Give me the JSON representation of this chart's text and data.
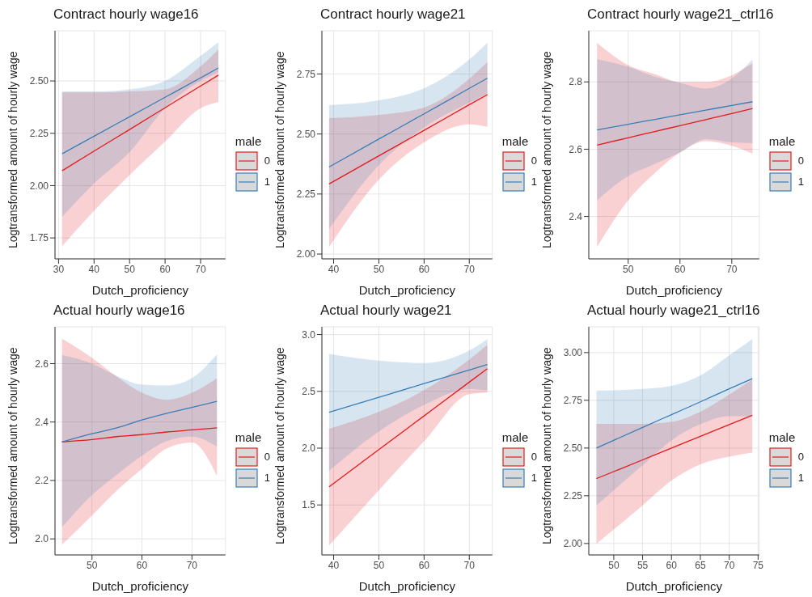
{
  "chart_data": [
    {
      "type": "line",
      "title": "Contract hourly wage16",
      "xlabel": "Dutch_proficiency",
      "ylabel": "Logtransformed amount of hourly wage",
      "legend_title": "male",
      "legend": "right",
      "grid": true,
      "x": [
        31,
        40,
        50,
        60,
        70,
        75
      ],
      "xlim": [
        29,
        77
      ],
      "xticks": [
        30,
        40,
        50,
        60,
        70
      ],
      "ylim": [
        1.65,
        2.74
      ],
      "yticks": [
        1.75,
        {
          "value": 2,
          "label": "2.00"
        },
        2.25,
        {
          "value": 2.5,
          "label": "2.50"
        }
      ],
      "series": [
        {
          "name": "0",
          "color": "#e41a1c",
          "values": [
            2.071,
            2.165,
            2.268,
            2.372,
            2.476,
            2.528
          ],
          "lower": [
            1.71,
            1.88,
            2.05,
            2.21,
            2.37,
            2.4
          ],
          "upper": [
            2.445,
            2.445,
            2.45,
            2.46,
            2.57,
            2.65
          ]
        },
        {
          "name": "1",
          "color": "#377eb8",
          "values": [
            2.152,
            2.236,
            2.329,
            2.422,
            2.515,
            2.562
          ],
          "lower": [
            1.85,
            2.01,
            2.16,
            2.37,
            2.5,
            2.54
          ],
          "upper": [
            2.45,
            2.45,
            2.46,
            2.5,
            2.62,
            2.685
          ]
        }
      ]
    },
    {
      "type": "line",
      "title": "Contract hourly wage21",
      "xlabel": "Dutch_proficiency",
      "ylabel": "Logtransformed amount of hourly wage",
      "legend_title": "male",
      "legend": "right",
      "grid": true,
      "x": [
        39,
        50,
        60,
        70,
        74
      ],
      "xlim": [
        37.4,
        75.1
      ],
      "xticks": [
        40,
        50,
        60,
        70
      ],
      "ylim": [
        1.98,
        2.93
      ],
      "yticks": [
        {
          "value": 2,
          "label": "2.00"
        },
        2.25,
        {
          "value": 2.5,
          "label": "2.50"
        },
        2.75
      ],
      "series": [
        {
          "name": "0",
          "color": "#e41a1c",
          "values": [
            2.292,
            2.409,
            2.515,
            2.622,
            2.664
          ],
          "lower": [
            2.03,
            2.31,
            2.465,
            2.54,
            2.53
          ],
          "upper": [
            2.566,
            2.58,
            2.61,
            2.73,
            2.8
          ]
        },
        {
          "name": "1",
          "color": "#377eb8",
          "values": [
            2.363,
            2.479,
            2.584,
            2.69,
            2.732
          ],
          "lower": [
            2.105,
            2.37,
            2.527,
            2.63,
            2.667
          ],
          "upper": [
            2.62,
            2.64,
            2.69,
            2.81,
            2.88
          ]
        }
      ]
    },
    {
      "type": "line",
      "title": "Contract hourly wage21_ctrl16",
      "xlabel": "Dutch_proficiency",
      "ylabel": "Logtransformed amount of hourly wage",
      "legend_title": "male",
      "legend": "right",
      "grid": true,
      "x": [
        44,
        50,
        55,
        60,
        65,
        70,
        74
      ],
      "xlim": [
        42.4,
        75.3
      ],
      "xticks": [
        50,
        60,
        70
      ],
      "ylim": [
        2.274,
        2.952
      ],
      "yticks": [
        2.4,
        2.6,
        2.8
      ],
      "series": [
        {
          "name": "0",
          "color": "#e41a1c",
          "values": [
            2.612,
            2.634,
            2.652,
            2.67,
            2.688,
            2.706,
            2.721
          ],
          "lower": [
            2.309,
            2.448,
            2.527,
            2.59,
            2.624,
            2.61,
            2.587
          ],
          "upper": [
            2.916,
            2.85,
            2.824,
            2.8,
            2.8,
            2.82,
            2.855
          ]
        },
        {
          "name": "1",
          "color": "#377eb8",
          "values": [
            2.657,
            2.674,
            2.688,
            2.702,
            2.716,
            2.73,
            2.741
          ],
          "lower": [
            2.448,
            2.52,
            2.555,
            2.59,
            2.63,
            2.62,
            2.618
          ],
          "upper": [
            2.867,
            2.845,
            2.816,
            2.797,
            2.78,
            2.81,
            2.867
          ]
        }
      ]
    },
    {
      "type": "line",
      "title": "Actual hourly wage16",
      "xlabel": "Dutch_proficiency",
      "ylabel": "Logtransformed amount of hourly wage",
      "legend_title": "male",
      "legend": "right",
      "grid": true,
      "x": [
        44,
        50,
        55,
        60,
        65,
        70,
        75
      ],
      "xlim": [
        42.6,
        76.7
      ],
      "xticks": [
        50,
        60,
        70
      ],
      "ylim": [
        1.945,
        2.726
      ],
      "yticks": [
        {
          "value": 2,
          "label": "2.0"
        },
        2.2,
        2.4,
        2.6
      ],
      "series": [
        {
          "name": "0",
          "color": "#e41a1c",
          "values": [
            2.332,
            2.34,
            2.35,
            2.357,
            2.366,
            2.373,
            2.38
          ],
          "lower": [
            1.98,
            2.08,
            2.166,
            2.24,
            2.31,
            2.33,
            2.216
          ],
          "upper": [
            2.685,
            2.62,
            2.555,
            2.5,
            2.476,
            2.5,
            2.55
          ]
        },
        {
          "name": "1",
          "color": "#377eb8",
          "values": [
            2.332,
            2.36,
            2.38,
            2.407,
            2.43,
            2.45,
            2.471
          ],
          "lower": [
            2.04,
            2.15,
            2.22,
            2.285,
            2.335,
            2.35,
            2.316
          ],
          "upper": [
            2.63,
            2.6,
            2.557,
            2.528,
            2.525,
            2.55,
            2.632
          ]
        }
      ]
    },
    {
      "type": "line",
      "title": "Actual hourly wage21",
      "xlabel": "Dutch_proficiency",
      "ylabel": "Logtransformed amount of hourly wage",
      "legend_title": "male",
      "legend": "right",
      "grid": true,
      "x": [
        39,
        50,
        60,
        70,
        74
      ],
      "xlim": [
        37.4,
        75.1
      ],
      "xticks": [
        40,
        50,
        60,
        70
      ],
      "ylim": [
        1.06,
        3.068
      ],
      "yticks": [
        1.5,
        {
          "value": 2,
          "label": "2.0"
        },
        2.5,
        {
          "value": 3,
          "label": "3.0"
        }
      ],
      "series": [
        {
          "name": "0",
          "color": "#e41a1c",
          "values": [
            1.66,
            1.987,
            2.284,
            2.581,
            2.7
          ],
          "lower": [
            1.144,
            1.63,
            2.06,
            2.475,
            2.49
          ],
          "upper": [
            2.17,
            2.32,
            2.51,
            2.78,
            2.91
          ]
        },
        {
          "name": "1",
          "color": "#377eb8",
          "values": [
            2.316,
            2.448,
            2.568,
            2.688,
            2.736
          ],
          "lower": [
            1.8,
            2.146,
            2.38,
            2.52,
            2.51
          ],
          "upper": [
            2.83,
            2.77,
            2.75,
            2.86,
            2.96
          ]
        }
      ]
    },
    {
      "type": "line",
      "title": "Actual hourly wage21_ctrl16",
      "xlabel": "Dutch_proficiency",
      "ylabel": "Logtransformed amount of hourly wage",
      "legend_title": "male",
      "legend": "right",
      "grid": true,
      "x": [
        47,
        55,
        60,
        65,
        70,
        74
      ],
      "xlim": [
        45.67,
        75.2
      ],
      "xticks": [
        50,
        55,
        60,
        65,
        70,
        75
      ],
      "ylim": [
        1.94,
        3.135
      ],
      "yticks": [
        {
          "value": 2,
          "label": "2.00"
        },
        2.25,
        {
          "value": 2.5,
          "label": "2.50"
        },
        2.75,
        {
          "value": 3,
          "label": "3.00"
        }
      ],
      "series": [
        {
          "name": "0",
          "color": "#e41a1c",
          "values": [
            2.34,
            2.438,
            2.5,
            2.561,
            2.623,
            2.672
          ],
          "lower": [
            1.998,
            2.2,
            2.33,
            2.415,
            2.455,
            2.476
          ],
          "upper": [
            2.627,
            2.627,
            2.637,
            2.69,
            2.78,
            2.86
          ]
        },
        {
          "name": "1",
          "color": "#377eb8",
          "values": [
            2.5,
            2.608,
            2.675,
            2.742,
            2.81,
            2.864
          ],
          "lower": [
            2.2,
            2.41,
            2.54,
            2.625,
            2.667,
            2.667
          ],
          "upper": [
            2.8,
            2.81,
            2.826,
            2.88,
            2.986,
            3.07
          ]
        }
      ]
    }
  ]
}
